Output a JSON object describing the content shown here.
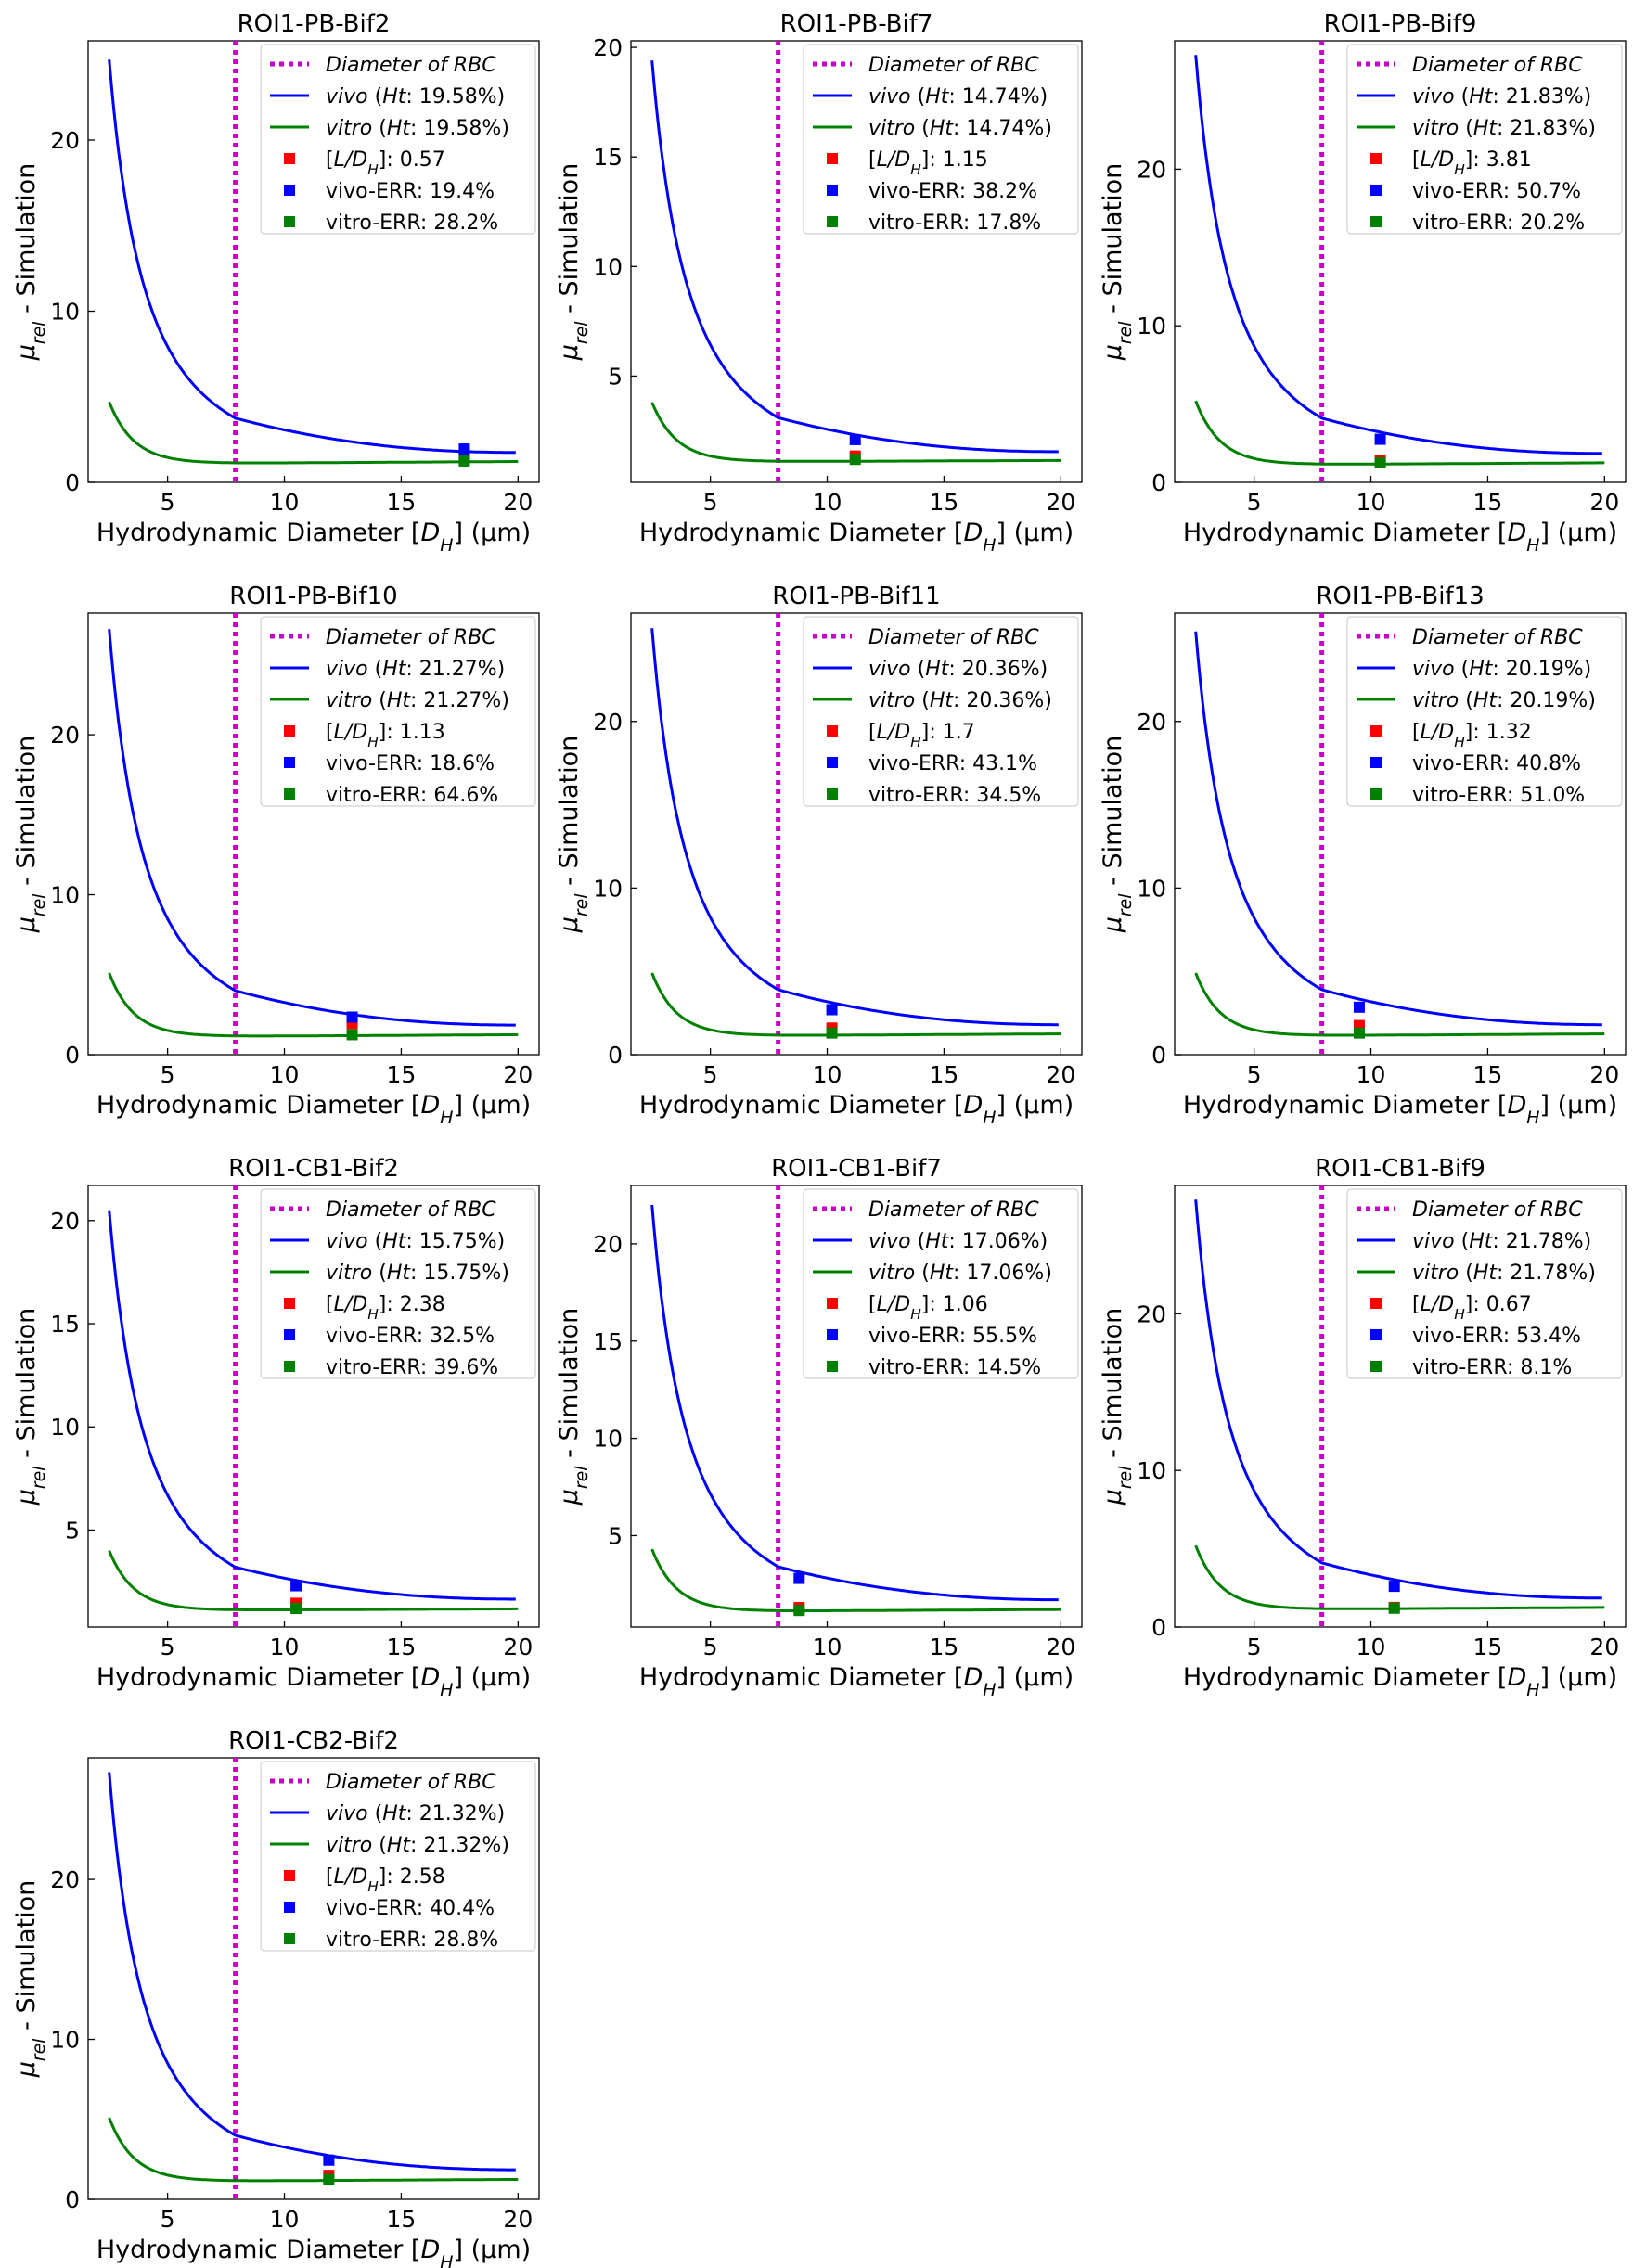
{
  "chart_data": [
    {
      "type": "line",
      "title": "ROI1-PB-Bif2",
      "xlabel": "Hydrodynamic Diameter [D_H] (μm)",
      "ylabel": "μ_rel - Simulation",
      "xlim": [
        1.6,
        20.9
      ],
      "ylim": [
        0,
        25.8
      ],
      "xticks": [
        5,
        10,
        15,
        20
      ],
      "yticks": [
        0,
        10,
        20
      ],
      "rbc_line": {
        "x": 7.9,
        "label": "Diameter of RBC"
      },
      "series": [
        {
          "name": "vivo (Ht: 19.58%)",
          "color": "#0000ff",
          "y0": 24.7,
          "y_rbc": 3.75,
          "y20": 1.75
        },
        {
          "name": "vitro (Ht: 19.58%)",
          "color": "#008000",
          "y0": 4.7,
          "y_rbc": 1.12,
          "y20": 1.22
        }
      ],
      "markers": [
        {
          "name": "[L/D_H]: 0.57",
          "color": "#ff0000",
          "x": 17.7,
          "y": 1.45
        },
        {
          "name": "vivo-ERR: 19.4%",
          "color": "#0000ff",
          "x": 17.7,
          "y": 1.95
        },
        {
          "name": "vitro-ERR: 28.2%",
          "color": "#008000",
          "x": 17.7,
          "y": 1.25
        }
      ],
      "legend": "top-right",
      "grid": false
    },
    {
      "type": "line",
      "title": "ROI1-PB-Bif7",
      "xlabel": "Hydrodynamic Diameter [D_H] (μm)",
      "ylabel": "μ_rel - Simulation",
      "xlim": [
        1.6,
        20.9
      ],
      "ylim": [
        0.15,
        20.3
      ],
      "xticks": [
        5,
        10,
        15,
        20
      ],
      "yticks": [
        5,
        10,
        15,
        20
      ],
      "rbc_line": {
        "x": 7.9,
        "label": "Diameter of RBC"
      },
      "series": [
        {
          "name": "vivo (Ht: 14.74%)",
          "color": "#0000ff",
          "y0": 19.4,
          "y_rbc": 3.1,
          "y20": 1.55
        },
        {
          "name": "vitro (Ht: 14.74%)",
          "color": "#008000",
          "y0": 3.8,
          "y_rbc": 1.1,
          "y20": 1.15
        }
      ],
      "markers": [
        {
          "name": "[L/D_H]: 1.15",
          "color": "#ff0000",
          "x": 11.2,
          "y": 1.35
        },
        {
          "name": "vivo-ERR: 38.2%",
          "color": "#0000ff",
          "x": 11.2,
          "y": 2.1
        },
        {
          "name": "vitro-ERR: 17.8%",
          "color": "#008000",
          "x": 11.2,
          "y": 1.2
        }
      ],
      "legend": "top-right",
      "grid": false
    },
    {
      "type": "line",
      "title": "ROI1-PB-Bif9",
      "xlabel": "Hydrodynamic Diameter [D_H] (μm)",
      "ylabel": "μ_rel - Simulation",
      "xlim": [
        1.6,
        20.9
      ],
      "ylim": [
        0,
        28.2
      ],
      "xticks": [
        5,
        10,
        15,
        20
      ],
      "yticks": [
        0,
        10,
        20
      ],
      "rbc_line": {
        "x": 7.9,
        "label": "Diameter of RBC"
      },
      "series": [
        {
          "name": "vivo (Ht: 21.83%)",
          "color": "#0000ff",
          "y0": 27.3,
          "y_rbc": 4.1,
          "y20": 1.85
        },
        {
          "name": "vitro (Ht: 21.83%)",
          "color": "#008000",
          "y0": 5.2,
          "y_rbc": 1.15,
          "y20": 1.25
        }
      ],
      "markers": [
        {
          "name": "[L/D_H]: 3.81",
          "color": "#ff0000",
          "x": 10.4,
          "y": 1.4
        },
        {
          "name": "vivo-ERR: 50.7%",
          "color": "#0000ff",
          "x": 10.4,
          "y": 2.75
        },
        {
          "name": "vitro-ERR: 20.2%",
          "color": "#008000",
          "x": 10.4,
          "y": 1.25
        }
      ],
      "legend": "top-right",
      "grid": false
    },
    {
      "type": "line",
      "title": "ROI1-PB-Bif10",
      "xlabel": "Hydrodynamic Diameter [D_H] (μm)",
      "ylabel": "μ_rel - Simulation",
      "xlim": [
        1.6,
        20.9
      ],
      "ylim": [
        0,
        27.6
      ],
      "xticks": [
        5,
        10,
        15,
        20
      ],
      "yticks": [
        0,
        10,
        20
      ],
      "rbc_line": {
        "x": 7.9,
        "label": "Diameter of RBC"
      },
      "series": [
        {
          "name": "vivo (Ht: 21.27%)",
          "color": "#0000ff",
          "y0": 26.6,
          "y_rbc": 4.0,
          "y20": 1.85
        },
        {
          "name": "vitro (Ht: 21.27%)",
          "color": "#008000",
          "y0": 5.1,
          "y_rbc": 1.15,
          "y20": 1.25
        }
      ],
      "markers": [
        {
          "name": "[L/D_H]: 1.13",
          "color": "#ff0000",
          "x": 12.9,
          "y": 1.95
        },
        {
          "name": "vivo-ERR: 18.6%",
          "color": "#0000ff",
          "x": 12.9,
          "y": 2.35
        },
        {
          "name": "vitro-ERR: 64.6%",
          "color": "#008000",
          "x": 12.9,
          "y": 1.25
        }
      ],
      "legend": "top-right",
      "grid": false
    },
    {
      "type": "line",
      "title": "ROI1-PB-Bif11",
      "xlabel": "Hydrodynamic Diameter [D_H] (μm)",
      "ylabel": "μ_rel - Simulation",
      "xlim": [
        1.6,
        20.9
      ],
      "ylim": [
        0,
        26.5
      ],
      "xticks": [
        5,
        10,
        15,
        20
      ],
      "yticks": [
        0,
        10,
        20
      ],
      "rbc_line": {
        "x": 7.9,
        "label": "Diameter of RBC"
      },
      "series": [
        {
          "name": "vivo (Ht: 20.36%)",
          "color": "#0000ff",
          "y0": 25.6,
          "y_rbc": 3.9,
          "y20": 1.8
        },
        {
          "name": "vitro (Ht: 20.36%)",
          "color": "#008000",
          "y0": 4.9,
          "y_rbc": 1.15,
          "y20": 1.25
        }
      ],
      "markers": [
        {
          "name": "[L/D_H]: 1.7",
          "color": "#ff0000",
          "x": 10.2,
          "y": 1.6
        },
        {
          "name": "vivo-ERR: 43.1%",
          "color": "#0000ff",
          "x": 10.2,
          "y": 2.7
        },
        {
          "name": "vitro-ERR: 34.5%",
          "color": "#008000",
          "x": 10.2,
          "y": 1.3
        }
      ],
      "legend": "top-right",
      "grid": false
    },
    {
      "type": "line",
      "title": "ROI1-PB-Bif13",
      "xlabel": "Hydrodynamic Diameter [D_H] (μm)",
      "ylabel": "μ_rel - Simulation",
      "xlim": [
        1.6,
        20.9
      ],
      "ylim": [
        0,
        26.5
      ],
      "xticks": [
        5,
        10,
        15,
        20
      ],
      "yticks": [
        0,
        10,
        20
      ],
      "rbc_line": {
        "x": 7.9,
        "label": "Diameter of RBC"
      },
      "series": [
        {
          "name": "vivo (Ht: 20.19%)",
          "color": "#0000ff",
          "y0": 25.4,
          "y_rbc": 3.9,
          "y20": 1.8
        },
        {
          "name": "vitro (Ht: 20.19%)",
          "color": "#008000",
          "y0": 4.9,
          "y_rbc": 1.15,
          "y20": 1.25
        }
      ],
      "markers": [
        {
          "name": "[L/D_H]: 1.32",
          "color": "#ff0000",
          "x": 9.5,
          "y": 1.75
        },
        {
          "name": "vivo-ERR: 40.8%",
          "color": "#0000ff",
          "x": 9.5,
          "y": 2.85
        },
        {
          "name": "vitro-ERR: 51.0%",
          "color": "#008000",
          "x": 9.5,
          "y": 1.3
        }
      ],
      "legend": "top-right",
      "grid": false
    },
    {
      "type": "line",
      "title": "ROI1-CB1-Bif2",
      "xlabel": "Hydrodynamic Diameter [D_H] (μm)",
      "ylabel": "μ_rel - Simulation",
      "xlim": [
        1.6,
        20.9
      ],
      "ylim": [
        0.3,
        21.7
      ],
      "xticks": [
        5,
        10,
        15,
        20
      ],
      "yticks": [
        5,
        10,
        15,
        20
      ],
      "rbc_line": {
        "x": 7.9,
        "label": "Diameter of RBC"
      },
      "series": [
        {
          "name": "vivo (Ht: 15.75%)",
          "color": "#0000ff",
          "y0": 20.5,
          "y_rbc": 3.2,
          "y20": 1.65
        },
        {
          "name": "vitro (Ht: 15.75%)",
          "color": "#008000",
          "y0": 4.0,
          "y_rbc": 1.12,
          "y20": 1.18
        }
      ],
      "markers": [
        {
          "name": "[L/D_H]: 2.38",
          "color": "#ff0000",
          "x": 10.5,
          "y": 1.45
        },
        {
          "name": "vivo-ERR: 32.5%",
          "color": "#0000ff",
          "x": 10.5,
          "y": 2.3
        },
        {
          "name": "vitro-ERR: 39.6%",
          "color": "#008000",
          "x": 10.5,
          "y": 1.2
        }
      ],
      "legend": "top-right",
      "grid": false
    },
    {
      "type": "line",
      "title": "ROI1-CB1-Bif7",
      "xlabel": "Hydrodynamic Diameter [D_H] (μm)",
      "ylabel": "μ_rel - Simulation",
      "xlim": [
        1.6,
        20.9
      ],
      "ylim": [
        0.3,
        23.0
      ],
      "xticks": [
        5,
        10,
        15,
        20
      ],
      "yticks": [
        5,
        10,
        15,
        20
      ],
      "rbc_line": {
        "x": 7.9,
        "label": "Diameter of RBC"
      },
      "series": [
        {
          "name": "vivo (Ht: 17.06%)",
          "color": "#0000ff",
          "y0": 22.0,
          "y_rbc": 3.4,
          "y20": 1.7
        },
        {
          "name": "vitro (Ht: 17.06%)",
          "color": "#008000",
          "y0": 4.3,
          "y_rbc": 1.12,
          "y20": 1.2
        }
      ],
      "markers": [
        {
          "name": "[L/D_H]: 1.06",
          "color": "#ff0000",
          "x": 8.8,
          "y": 1.3
        },
        {
          "name": "vivo-ERR: 55.5%",
          "color": "#0000ff",
          "x": 8.8,
          "y": 2.8
        },
        {
          "name": "vitro-ERR: 14.5%",
          "color": "#008000",
          "x": 8.8,
          "y": 1.15
        }
      ],
      "legend": "top-right",
      "grid": false
    },
    {
      "type": "line",
      "title": "ROI1-CB1-Bif9",
      "xlabel": "Hydrodynamic Diameter [D_H] (μm)",
      "ylabel": "μ_rel - Simulation",
      "xlim": [
        1.6,
        20.9
      ],
      "ylim": [
        0,
        28.2
      ],
      "xticks": [
        5,
        10,
        15,
        20
      ],
      "yticks": [
        0,
        10,
        20
      ],
      "rbc_line": {
        "x": 7.9,
        "label": "Diameter of RBC"
      },
      "series": [
        {
          "name": "vivo (Ht: 21.78%)",
          "color": "#0000ff",
          "y0": 27.3,
          "y_rbc": 4.1,
          "y20": 1.85
        },
        {
          "name": "vitro (Ht: 21.78%)",
          "color": "#008000",
          "y0": 5.2,
          "y_rbc": 1.15,
          "y20": 1.25
        }
      ],
      "markers": [
        {
          "name": "[L/D_H]: 0.67",
          "color": "#ff0000",
          "x": 11.0,
          "y": 1.25
        },
        {
          "name": "vivo-ERR: 53.4%",
          "color": "#0000ff",
          "x": 11.0,
          "y": 2.6
        },
        {
          "name": "vitro-ERR: 8.1%",
          "color": "#008000",
          "x": 11.0,
          "y": 1.2
        }
      ],
      "legend": "top-right",
      "grid": false
    },
    {
      "type": "line",
      "title": "ROI1-CB2-Bif2",
      "xlabel": "Hydrodynamic Diameter [D_H] (μm)",
      "ylabel": "μ_rel - Simulation",
      "xlim": [
        1.6,
        20.9
      ],
      "ylim": [
        0,
        27.6
      ],
      "xticks": [
        5,
        10,
        15,
        20
      ],
      "yticks": [
        0,
        10,
        20
      ],
      "rbc_line": {
        "x": 7.9,
        "label": "Diameter of RBC"
      },
      "series": [
        {
          "name": "vivo (Ht: 21.32%)",
          "color": "#0000ff",
          "y0": 26.7,
          "y_rbc": 4.0,
          "y20": 1.85
        },
        {
          "name": "vitro (Ht: 21.32%)",
          "color": "#008000",
          "y0": 5.1,
          "y_rbc": 1.15,
          "y20": 1.25
        }
      ],
      "markers": [
        {
          "name": "[L/D_H]: 2.58",
          "color": "#ff0000",
          "x": 11.9,
          "y": 1.5
        },
        {
          "name": "vivo-ERR: 40.4%",
          "color": "#0000ff",
          "x": 11.9,
          "y": 2.45
        },
        {
          "name": "vitro-ERR: 28.8%",
          "color": "#008000",
          "x": 11.9,
          "y": 1.25
        }
      ],
      "legend": "top-right",
      "grid": false
    }
  ]
}
